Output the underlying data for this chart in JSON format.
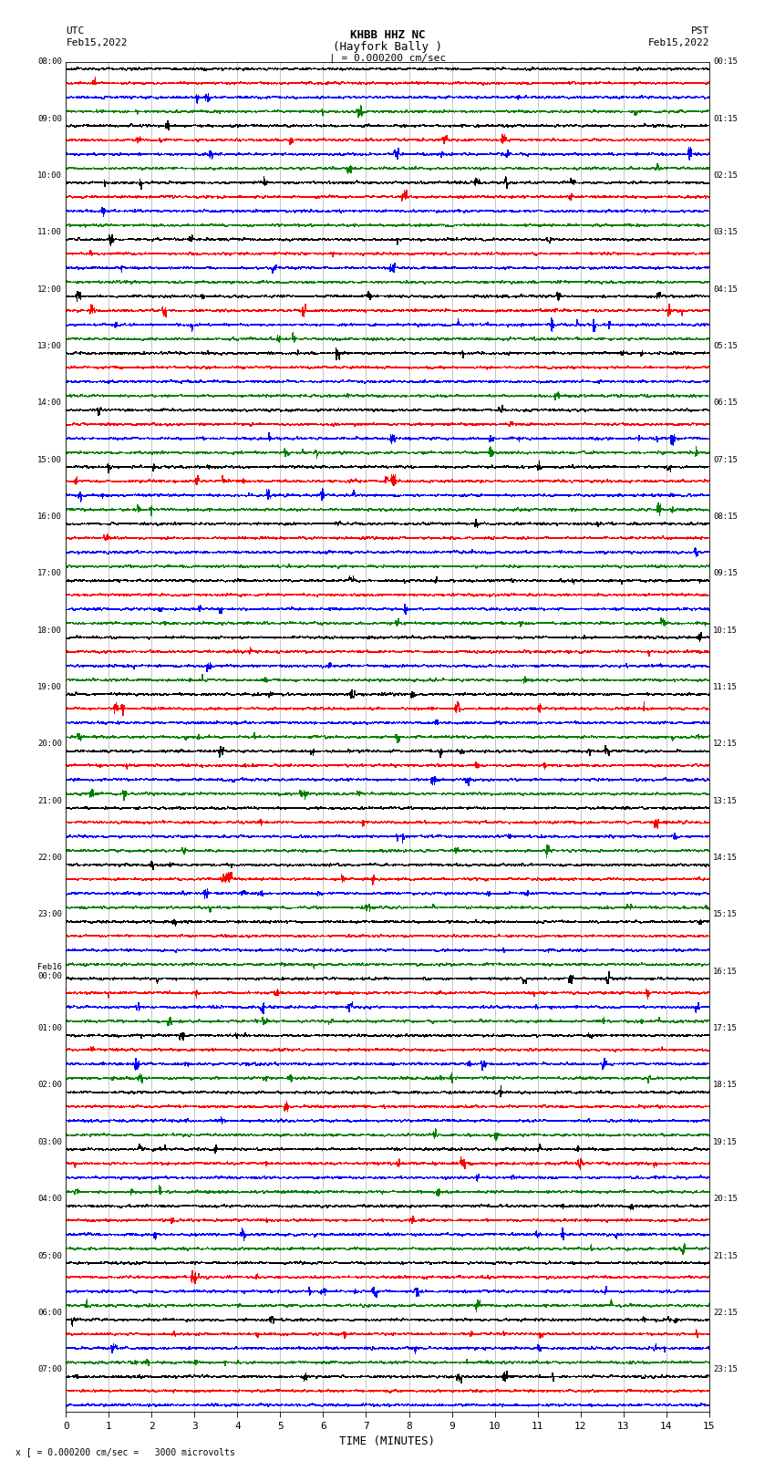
{
  "title_line1": "KHBB HHZ NC",
  "title_line2": "(Hayfork Bally )",
  "scale_bar": "| = 0.000200 cm/sec",
  "left_header_line1": "UTC",
  "left_header_line2": "Feb15,2022",
  "right_header_line1": "PST",
  "right_header_line2": "Feb15,2022",
  "xlabel": "TIME (MINUTES)",
  "footnote": "x [ = 0.000200 cm/sec =   3000 microvolts",
  "utc_labels": [
    "08:00",
    "",
    "",
    "",
    "09:00",
    "",
    "",
    "",
    "10:00",
    "",
    "",
    "",
    "11:00",
    "",
    "",
    "",
    "12:00",
    "",
    "",
    "",
    "13:00",
    "",
    "",
    "",
    "14:00",
    "",
    "",
    "",
    "15:00",
    "",
    "",
    "",
    "16:00",
    "",
    "",
    "",
    "17:00",
    "",
    "",
    "",
    "18:00",
    "",
    "",
    "",
    "19:00",
    "",
    "",
    "",
    "20:00",
    "",
    "",
    "",
    "21:00",
    "",
    "",
    "",
    "22:00",
    "",
    "",
    "",
    "23:00",
    "",
    "",
    "",
    "Feb16\n00:00",
    "",
    "",
    "",
    "01:00",
    "",
    "",
    "",
    "02:00",
    "",
    "",
    "",
    "03:00",
    "",
    "",
    "",
    "04:00",
    "",
    "",
    "",
    "05:00",
    "",
    "",
    "",
    "06:00",
    "",
    "",
    "",
    "07:00",
    "",
    ""
  ],
  "pst_labels": [
    "00:15",
    "",
    "",
    "",
    "01:15",
    "",
    "",
    "",
    "02:15",
    "",
    "",
    "",
    "03:15",
    "",
    "",
    "",
    "04:15",
    "",
    "",
    "",
    "05:15",
    "",
    "",
    "",
    "06:15",
    "",
    "",
    "",
    "07:15",
    "",
    "",
    "",
    "08:15",
    "",
    "",
    "",
    "09:15",
    "",
    "",
    "",
    "10:15",
    "",
    "",
    "",
    "11:15",
    "",
    "",
    "",
    "12:15",
    "",
    "",
    "",
    "13:15",
    "",
    "",
    "",
    "14:15",
    "",
    "",
    "",
    "15:15",
    "",
    "",
    "",
    "16:15",
    "",
    "",
    "",
    "17:15",
    "",
    "",
    "",
    "18:15",
    "",
    "",
    "",
    "19:15",
    "",
    "",
    "",
    "20:15",
    "",
    "",
    "",
    "21:15",
    "",
    "",
    "",
    "22:15",
    "",
    "",
    "",
    "23:15",
    "",
    ""
  ],
  "trace_colors": [
    "black",
    "red",
    "blue",
    "green"
  ],
  "n_rows": 95,
  "x_min": 0,
  "x_max": 15,
  "x_ticks": [
    0,
    1,
    2,
    3,
    4,
    5,
    6,
    7,
    8,
    9,
    10,
    11,
    12,
    13,
    14,
    15
  ],
  "bg_color": "white",
  "grid_color": "#999999",
  "fig_width": 8.5,
  "fig_height": 16.13,
  "dpi": 100,
  "noise_scale": 0.06,
  "lw": 0.3
}
